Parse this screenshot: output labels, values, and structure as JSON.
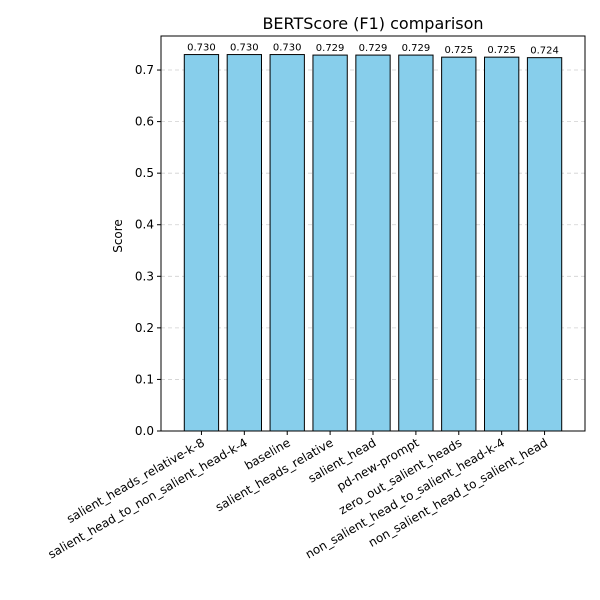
{
  "chart_data": {
    "type": "bar",
    "title": "BERTScore (F1) comparison",
    "xlabel": "",
    "ylabel": "Score",
    "categories": [
      "salient_heads_relative-k-8",
      "salient_head_to_non_salient_head-k-4",
      "baseline",
      "salient_heads_relative",
      "salient_head",
      "pd-new-prompt",
      "zero_out_salient_heads",
      "non_salient_head_to_salient_head-k-4",
      "non_salient_head_to_salient_head"
    ],
    "values": [
      0.73,
      0.73,
      0.73,
      0.729,
      0.729,
      0.729,
      0.725,
      0.725,
      0.724
    ],
    "value_labels": [
      "0.730",
      "0.730",
      "0.730",
      "0.729",
      "0.729",
      "0.729",
      "0.725",
      "0.725",
      "0.724"
    ],
    "ylim": [
      0,
      0.766
    ],
    "yticks": [
      "0.0",
      "0.1",
      "0.2",
      "0.3",
      "0.4",
      "0.5",
      "0.6",
      "0.7"
    ],
    "grid": true,
    "colors": {
      "bar_fill": "#87CEEB",
      "bar_edge": "#000000"
    }
  }
}
